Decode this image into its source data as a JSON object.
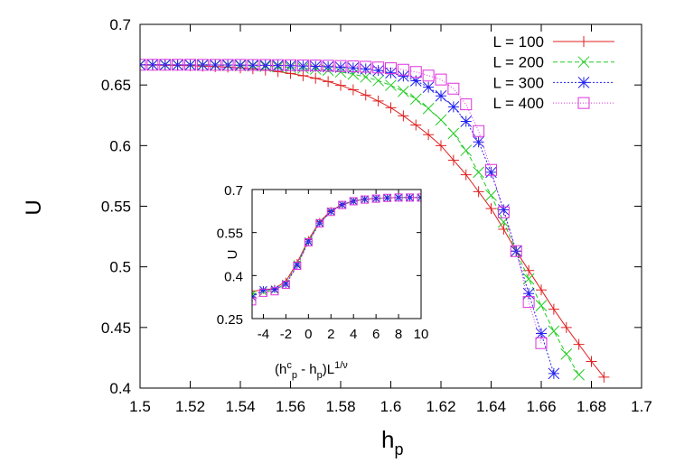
{
  "chart_data": [
    {
      "type": "line",
      "x_label_parts": [
        "h",
        "p"
      ],
      "y_label": "U",
      "xlim": [
        1.5,
        1.7
      ],
      "xticks": [
        1.5,
        1.52,
        1.54,
        1.56,
        1.58,
        1.6,
        1.62,
        1.64,
        1.66,
        1.68,
        1.7
      ],
      "ylim": [
        0.4,
        0.7
      ],
      "yticks": [
        0.4,
        0.45,
        0.5,
        0.55,
        0.6,
        0.65,
        0.7
      ],
      "legend": "top-right",
      "x": [
        1.5,
        1.505,
        1.51,
        1.515,
        1.52,
        1.525,
        1.53,
        1.535,
        1.54,
        1.545,
        1.55,
        1.555,
        1.56,
        1.565,
        1.57,
        1.575,
        1.58,
        1.585,
        1.59,
        1.595,
        1.6,
        1.605,
        1.61,
        1.615,
        1.62,
        1.625,
        1.63,
        1.635,
        1.64,
        1.645,
        1.65,
        1.655,
        1.66,
        1.665,
        1.67,
        1.675,
        1.68,
        1.685
      ],
      "series": [
        {
          "name": "L = 100",
          "color": "#e02020",
          "marker": "plus",
          "line_style": "solid",
          "values": [
            0.6665,
            0.6664,
            0.6663,
            0.6661,
            0.6659,
            0.6656,
            0.6652,
            0.6647,
            0.6641,
            0.6633,
            0.6623,
            0.661,
            0.6595,
            0.6577,
            0.6555,
            0.6528,
            0.6497,
            0.646,
            0.6417,
            0.6368,
            0.6312,
            0.6245,
            0.617,
            0.609,
            0.6,
            0.588,
            0.576,
            0.562,
            0.548,
            0.531,
            0.513,
            0.497,
            0.481,
            0.465,
            0.45,
            0.436,
            0.422,
            0.409
          ]
        },
        {
          "name": "L = 200",
          "color": "#22cc22",
          "marker": "cross",
          "line_style": "dashed",
          "values": [
            0.6666,
            0.6666,
            0.6665,
            0.6665,
            0.6664,
            0.6663,
            0.6662,
            0.6661,
            0.6659,
            0.6657,
            0.6654,
            0.665,
            0.6645,
            0.6639,
            0.6631,
            0.6621,
            0.6607,
            0.6589,
            0.6566,
            0.6536,
            0.6497,
            0.6447,
            0.6384,
            0.6306,
            0.6212,
            0.61,
            0.596,
            0.578,
            0.559,
            0.537,
            0.513,
            0.49,
            0.468,
            0.447,
            0.428,
            0.411,
            null,
            null
          ]
        },
        {
          "name": "L = 300",
          "color": "#2222ee",
          "marker": "star",
          "line_style": "dotted",
          "values": [
            0.6667,
            0.6667,
            0.6667,
            0.6666,
            0.6666,
            0.6666,
            0.6665,
            0.6665,
            0.6664,
            0.6663,
            0.6662,
            0.6661,
            0.6659,
            0.6657,
            0.6654,
            0.6651,
            0.6647,
            0.6641,
            0.6632,
            0.6619,
            0.66,
            0.6573,
            0.6535,
            0.6482,
            0.641,
            0.632,
            0.62,
            0.603,
            0.578,
            0.547,
            0.513,
            0.478,
            0.445,
            0.412,
            null,
            null,
            null,
            null
          ]
        },
        {
          "name": "L = 400",
          "color": "#dd33dd",
          "marker": "square",
          "line_style": "fine-dotted",
          "values": [
            0.6667,
            0.6667,
            0.6667,
            0.6667,
            0.6667,
            0.6666,
            0.6666,
            0.6666,
            0.6666,
            0.6665,
            0.6665,
            0.6664,
            0.6663,
            0.6662,
            0.6661,
            0.6659,
            0.6657,
            0.6654,
            0.665,
            0.6645,
            0.6638,
            0.6626,
            0.6607,
            0.6578,
            0.6545,
            0.647,
            0.634,
            0.612,
            0.58,
            0.545,
            0.513,
            0.471,
            0.437,
            null,
            null,
            null,
            null,
            null
          ]
        }
      ]
    },
    {
      "type": "line",
      "x_label_parts": [
        "(h",
        "c",
        "p",
        " - h",
        "p",
        ")L",
        "1/ν"
      ],
      "y_label": "U",
      "xlim": [
        -5,
        10
      ],
      "xticks": [
        -4,
        -2,
        0,
        2,
        4,
        6,
        8,
        10
      ],
      "ylim": [
        0.25,
        0.7
      ],
      "yticks": [
        0.25,
        0.4,
        0.55,
        0.7
      ],
      "x": [
        -5,
        -4,
        -3,
        -2,
        -1,
        0,
        1,
        2,
        3,
        4,
        5,
        6,
        7,
        8,
        9,
        10
      ],
      "series": [
        {
          "color": "#e02020",
          "marker": "plus",
          "line_style": "solid",
          "values": [
            0.345,
            0.35,
            0.355,
            0.38,
            0.445,
            0.525,
            0.588,
            0.626,
            0.648,
            0.66,
            0.666,
            0.669,
            0.671,
            0.672,
            0.672,
            0.672
          ]
        },
        {
          "color": "#22cc22",
          "marker": "cross",
          "line_style": "dashed",
          "values": [
            0.335,
            0.343,
            0.35,
            0.372,
            0.44,
            0.52,
            0.585,
            0.624,
            0.647,
            0.66,
            0.666,
            0.669,
            0.671,
            0.672,
            0.672,
            0.672
          ]
        },
        {
          "color": "#2222ee",
          "marker": "star",
          "line_style": "dotted",
          "values": [
            0.325,
            0.35,
            0.352,
            0.37,
            0.436,
            0.518,
            0.583,
            0.623,
            0.647,
            0.659,
            0.666,
            0.669,
            0.671,
            0.672,
            0.672,
            0.672
          ]
        },
        {
          "color": "#dd33dd",
          "marker": "square",
          "line_style": "fine-dotted",
          "values": [
            0.31,
            0.34,
            0.345,
            0.368,
            0.434,
            0.516,
            0.582,
            0.622,
            0.646,
            0.659,
            0.665,
            0.668,
            0.671,
            0.672,
            0.672,
            0.672
          ]
        }
      ]
    }
  ]
}
